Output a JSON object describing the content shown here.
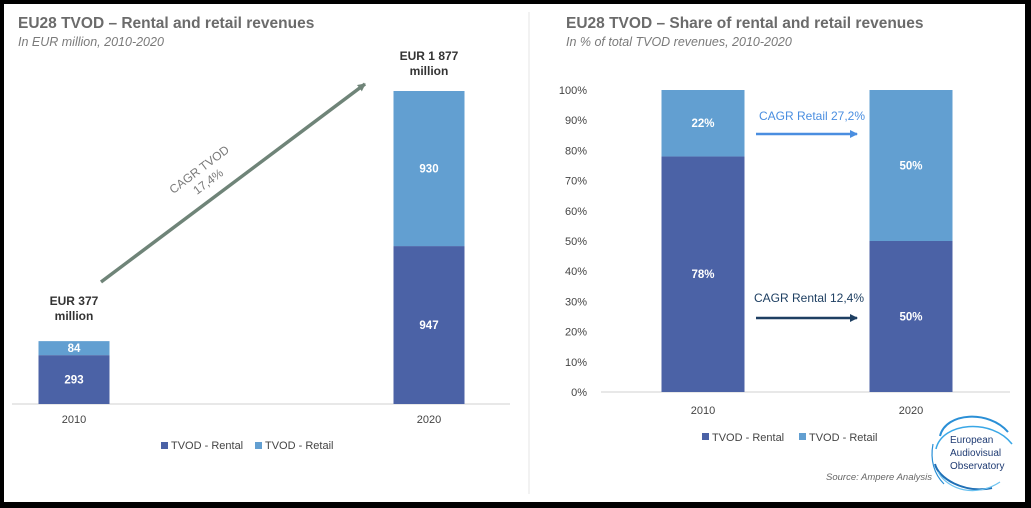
{
  "colors": {
    "rental": "#4b62a6",
    "retail": "#629fd1",
    "arrow": "#6f8478",
    "retail_arrow": "#4a8ee0",
    "rental_arrow": "#1e3f62",
    "axis": "#d0d0d0"
  },
  "logo": {
    "line1": "European",
    "line2": "Audiovisual",
    "line3": "Observatory"
  },
  "source": "Source: Ampere Analysis",
  "chart_data": [
    {
      "type": "bar",
      "stacked": true,
      "title": "EU28 TVOD – Rental and retail revenues",
      "subtitle": "In EUR million, 2010-2020",
      "categories": [
        "2010",
        "2020"
      ],
      "series": [
        {
          "name": "TVOD - Rental",
          "values": [
            293,
            947
          ],
          "labels": [
            "293",
            "947"
          ]
        },
        {
          "name": "TVOD - Retail",
          "values": [
            84,
            930
          ],
          "labels": [
            "84",
            "930"
          ]
        }
      ],
      "totals": [
        {
          "line1": "EUR 377",
          "line2": "million"
        },
        {
          "line1": "EUR 1 877",
          "line2": "million"
        }
      ],
      "ylim": [
        0,
        1877
      ],
      "annotation": {
        "line1": "CAGR TVOD",
        "line2": "17,4%"
      },
      "legend": "bottom",
      "grid": false
    },
    {
      "type": "bar",
      "stacked": true,
      "title": "EU28 TVOD – Share of rental and retail revenues",
      "subtitle": "In % of total TVOD revenues, 2010-2020",
      "categories": [
        "2010",
        "2020"
      ],
      "series": [
        {
          "name": "TVOD - Rental",
          "values": [
            78,
            50
          ],
          "labels": [
            "78%",
            "50%"
          ]
        },
        {
          "name": "TVOD - Retail",
          "values": [
            22,
            50
          ],
          "labels": [
            "22%",
            "50%"
          ]
        }
      ],
      "ylim": [
        0,
        100
      ],
      "yticks": [
        "0%",
        "10%",
        "20%",
        "30%",
        "40%",
        "50%",
        "60%",
        "70%",
        "80%",
        "90%",
        "100%"
      ],
      "annotations": {
        "retail": "CAGR Retail 27,2%",
        "rental": "CAGR Rental 12,4%"
      },
      "legend": "bottom",
      "grid": false
    }
  ]
}
